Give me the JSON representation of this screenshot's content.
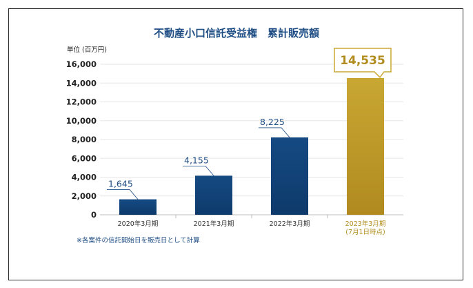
{
  "chart_data": {
    "type": "bar",
    "title": "不動産小口信託受益権　累計販売額",
    "unit_label": "単位 (百万円)",
    "categories": [
      [
        "2020年3月期"
      ],
      [
        "2021年3月期"
      ],
      [
        "2022年3月期"
      ],
      [
        "2023年3月期",
        "(7月1日時点)"
      ]
    ],
    "values": [
      1645,
      4155,
      8225,
      14535
    ],
    "value_labels": [
      "1,645",
      "4,155",
      "8,225",
      "14,535"
    ],
    "yticks": [
      0,
      2000,
      4000,
      6000,
      8000,
      10000,
      12000,
      14000,
      16000
    ],
    "ytick_labels": [
      "0",
      "2,000",
      "4,000",
      "6,000",
      "8,000",
      "10,000",
      "12,000",
      "14,000",
      "16,000"
    ],
    "ylim": [
      0,
      16000
    ],
    "grid": true,
    "highlight_index": 3,
    "colors": {
      "bar": "#154a82",
      "bar_dark": "#0e3a6b",
      "highlight": "#c9a733",
      "highlight_dark": "#b08a1f",
      "label": "#1f4e85",
      "grid": "#e6e6e6"
    }
  },
  "footnote": "※各案件の信託開始日を販売日として計算"
}
